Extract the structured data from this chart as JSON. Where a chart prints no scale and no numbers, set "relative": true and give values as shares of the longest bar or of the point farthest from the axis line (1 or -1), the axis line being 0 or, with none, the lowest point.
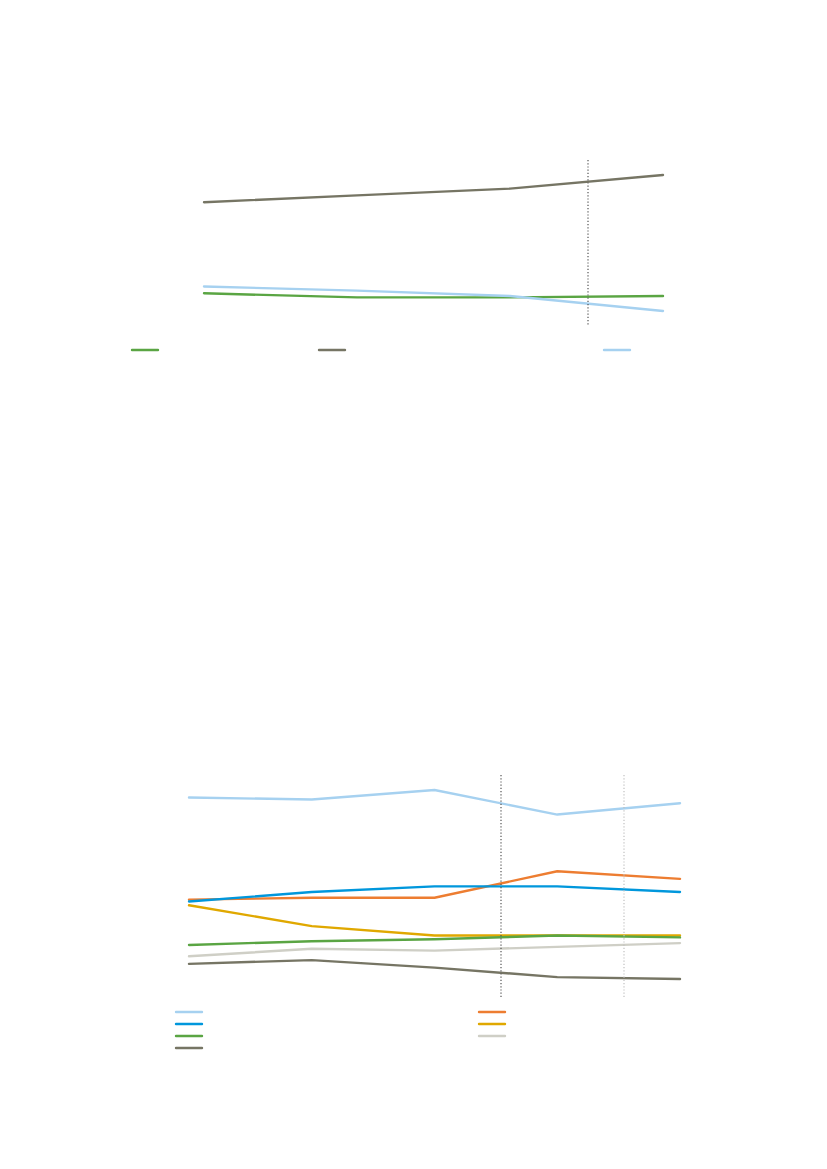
{
  "chart_data": [
    {
      "type": "line",
      "relative": true,
      "categories": [
        null,
        null,
        null,
        null
      ],
      "series": [
        {
          "color": "#5aa543",
          "values": [
            0.13,
            0.1,
            0.1,
            0.11
          ]
        },
        {
          "color": "#767564",
          "values": [
            0.8,
            0.85,
            0.9,
            1
          ]
        },
        {
          "color": "#a6d1f0",
          "values": [
            0.18,
            0.15,
            0.11,
            0
          ]
        }
      ]
    },
    {
      "type": "line",
      "relative": true,
      "categories": [
        null,
        null,
        null,
        null,
        null
      ],
      "series": [
        {
          "color": "#a6d1f0",
          "values": [
            0.96,
            0.95,
            1,
            0.87,
            0.93
          ]
        },
        {
          "color": "#ed7d31",
          "values": [
            0.42,
            0.43,
            0.43,
            0.57,
            0.53
          ]
        },
        {
          "color": "#0097dc",
          "values": [
            0.41,
            0.46,
            0.49,
            0.49,
            0.46
          ]
        },
        {
          "color": "#e0a800",
          "values": [
            0.39,
            0.28,
            0.23,
            0.23,
            0.23
          ]
        },
        {
          "color": "#5aa543",
          "values": [
            0.18,
            0.2,
            0.21,
            0.23,
            0.22
          ]
        },
        {
          "color": "#cfcfc6",
          "values": [
            0.12,
            0.16,
            0.15,
            0.17,
            0.19
          ]
        },
        {
          "color": "#767564",
          "values": [
            0.08,
            0.1,
            0.06,
            0.01,
            0
          ]
        }
      ]
    }
  ]
}
